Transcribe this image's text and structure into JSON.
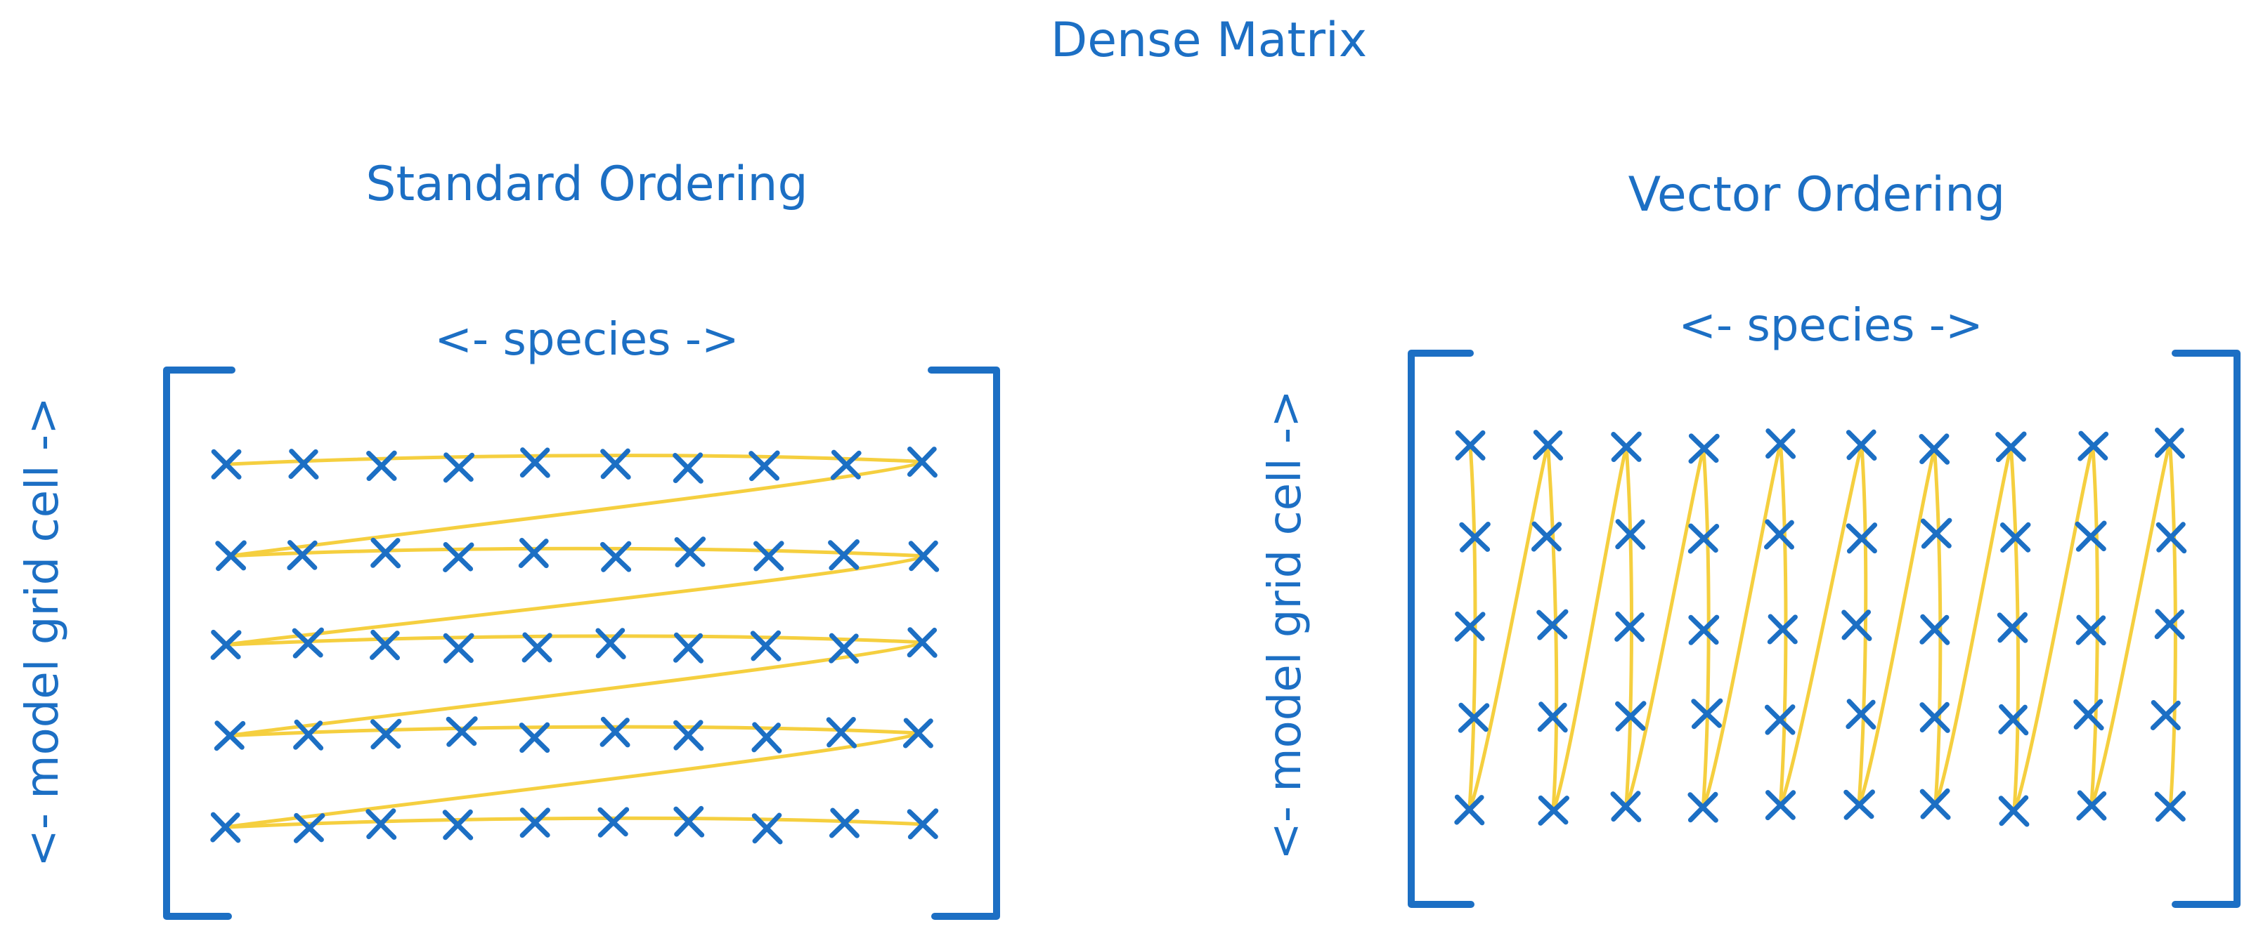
{
  "title": "Dense Matrix",
  "colors": {
    "ink": "#1c6fc4",
    "path": "#f5cf3f",
    "background": "#ffffff"
  },
  "panels": [
    {
      "id": "standard",
      "heading": "Standard Ordering",
      "column_label": "<- species ->",
      "row_label": "<- model grid cell ->",
      "rows": 5,
      "cols": 10,
      "traversal": "row-major"
    },
    {
      "id": "vector",
      "heading": "Vector Ordering",
      "column_label": "<- species ->",
      "row_label": "<- model grid cell ->",
      "rows": 5,
      "cols": 10,
      "traversal": "column-major"
    }
  ]
}
